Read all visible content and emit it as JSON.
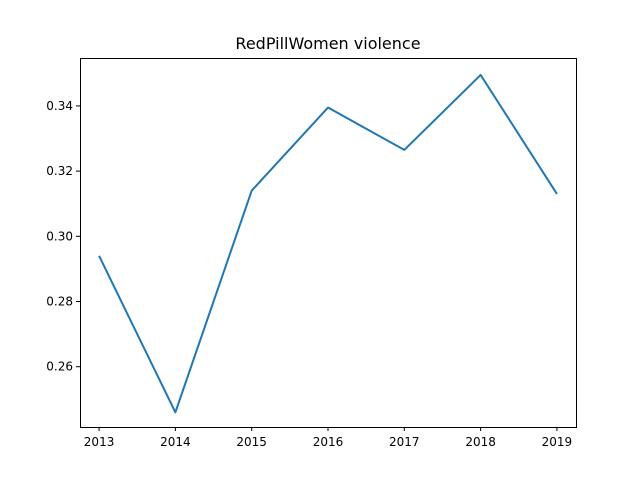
{
  "chart_data": {
    "type": "line",
    "title": "RedPillWomen violence",
    "xlabel": "",
    "ylabel": "",
    "x": [
      "2013",
      "2014",
      "2015",
      "2016",
      "2017",
      "2018",
      "2019"
    ],
    "series": [
      {
        "values": [
          0.294,
          0.246,
          0.314,
          0.3395,
          0.3265,
          0.3495,
          0.313
        ]
      }
    ],
    "xlim": [
      2012.75,
      2019.25
    ],
    "ylim": [
      0.2415,
      0.3547
    ],
    "yticks": [
      "0.26",
      "0.28",
      "0.30",
      "0.32",
      "0.34"
    ],
    "grid": false,
    "line_color": "#1f77b4"
  }
}
